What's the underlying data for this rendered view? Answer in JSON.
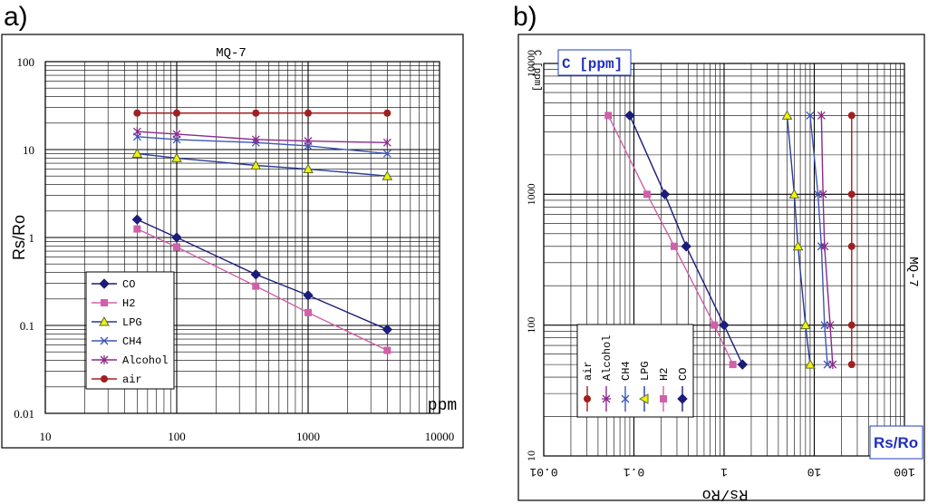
{
  "panels": {
    "a": "a)",
    "b": "b)"
  },
  "chart_data": [
    {
      "type": "line",
      "title": "MQ-7",
      "xlabel": "ppm",
      "ylabel": "Rs/Ro",
      "xscale": "log",
      "yscale": "log",
      "xlim": [
        10,
        10000
      ],
      "ylim": [
        0.01,
        100
      ],
      "grid": true,
      "legend": "bottom-left",
      "x_tick_labels": [
        "10",
        "100",
        "1000",
        "10000"
      ],
      "y_tick_labels": [
        "0.01",
        "0.1",
        "1",
        "10",
        "100"
      ],
      "series": [
        {
          "name": "CO",
          "color": "#1c1c7a",
          "marker": "diamond",
          "x": [
            50,
            100,
            400,
            1000,
            4000
          ],
          "y": [
            1.6,
            1.0,
            0.38,
            0.22,
            0.09
          ]
        },
        {
          "name": "H2",
          "color": "#d060a8",
          "marker": "square",
          "x": [
            50,
            100,
            400,
            1000,
            4000
          ],
          "y": [
            1.25,
            0.78,
            0.28,
            0.14,
            0.052
          ]
        },
        {
          "name": "LPG",
          "color": "#2a3a9a",
          "marker": "triangle",
          "x": [
            50,
            100,
            400,
            1000,
            4000
          ],
          "y": [
            9,
            8,
            6.6,
            6,
            5
          ]
        },
        {
          "name": "CH4",
          "color": "#3a56b8",
          "marker": "x",
          "x": [
            50,
            100,
            400,
            1000,
            4000
          ],
          "y": [
            14,
            13,
            12,
            11,
            9
          ]
        },
        {
          "name": "Alcohol",
          "color": "#8a2a8a",
          "marker": "star",
          "x": [
            50,
            100,
            400,
            1000,
            4000
          ],
          "y": [
            16,
            15,
            13,
            12.5,
            12
          ]
        },
        {
          "name": "air",
          "color": "#a02020",
          "marker": "circle",
          "x": [
            50,
            100,
            400,
            1000,
            4000
          ],
          "y": [
            26,
            26,
            26,
            26,
            26
          ]
        }
      ]
    },
    {
      "type": "line",
      "title": "MQ-7",
      "xlabel": "Rs/Ro",
      "ylabel": "C [ppm]",
      "xlabel_box": "Rs/Ro",
      "ylabel_box": "C [ppm]",
      "xscale": "log",
      "yscale": "log",
      "xlim": [
        0.01,
        100
      ],
      "ylim": [
        10,
        10000
      ],
      "grid": true,
      "legend": "bottom-left",
      "x_tick_labels": [
        "0.01",
        "0.1",
        "1",
        "10",
        "100"
      ],
      "y_tick_labels": [
        "10",
        "100",
        "1000",
        "10000"
      ],
      "series": [
        {
          "name": "CO",
          "color": "#1c1c7a",
          "marker": "diamond",
          "y": [
            50,
            100,
            400,
            1000,
            4000
          ],
          "x": [
            1.6,
            1.0,
            0.38,
            0.22,
            0.09
          ]
        },
        {
          "name": "H2",
          "color": "#d060a8",
          "marker": "square",
          "y": [
            50,
            100,
            400,
            1000,
            4000
          ],
          "x": [
            1.25,
            0.78,
            0.28,
            0.14,
            0.052
          ]
        },
        {
          "name": "LPG",
          "color": "#2a3a9a",
          "marker": "triangle",
          "y": [
            50,
            100,
            400,
            1000,
            4000
          ],
          "x": [
            9,
            8,
            6.6,
            6,
            5
          ]
        },
        {
          "name": "CH4",
          "color": "#3a56b8",
          "marker": "x",
          "y": [
            50,
            100,
            400,
            1000,
            4000
          ],
          "x": [
            14,
            13,
            12,
            11,
            9
          ]
        },
        {
          "name": "Alcohol",
          "color": "#8a2a8a",
          "marker": "star",
          "y": [
            50,
            100,
            400,
            1000,
            4000
          ],
          "x": [
            16,
            15,
            13,
            12.5,
            12
          ]
        },
        {
          "name": "air",
          "color": "#a02020",
          "marker": "circle",
          "y": [
            50,
            100,
            400,
            1000,
            4000
          ],
          "x": [
            26,
            26,
            26,
            26,
            26
          ]
        }
      ]
    }
  ]
}
